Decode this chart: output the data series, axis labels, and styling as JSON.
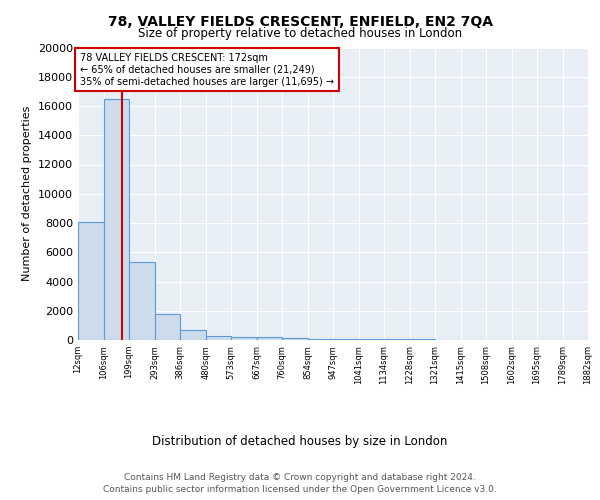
{
  "title": "78, VALLEY FIELDS CRESCENT, ENFIELD, EN2 7QA",
  "subtitle": "Size of property relative to detached houses in London",
  "xlabel": "Distribution of detached houses by size in London",
  "ylabel": "Number of detached properties",
  "bin_labels": [
    "12sqm",
    "106sqm",
    "199sqm",
    "293sqm",
    "386sqm",
    "480sqm",
    "573sqm",
    "667sqm",
    "760sqm",
    "854sqm",
    "947sqm",
    "1041sqm",
    "1134sqm",
    "1228sqm",
    "1321sqm",
    "1415sqm",
    "1508sqm",
    "1602sqm",
    "1695sqm",
    "1789sqm",
    "1882sqm"
  ],
  "bar_heights": [
    8100,
    16500,
    5300,
    1750,
    700,
    300,
    200,
    175,
    150,
    100,
    80,
    60,
    50,
    40,
    30,
    20,
    15,
    12,
    10,
    8
  ],
  "bar_color": "#ccdcec",
  "bar_edge_color": "#5b9bd5",
  "background_color": "#e8eef6",
  "annotation_line1": "78 VALLEY FIELDS CRESCENT: 172sqm",
  "annotation_line2": "← 65% of detached houses are smaller (21,249)",
  "annotation_line3": "35% of semi-detached houses are larger (11,695) →",
  "annotation_box_color": "#cc0000",
  "vline_color": "#cc0000",
  "ylim": [
    0,
    20000
  ],
  "yticks": [
    0,
    2000,
    4000,
    6000,
    8000,
    10000,
    12000,
    14000,
    16000,
    18000,
    20000
  ],
  "footer1": "Contains HM Land Registry data © Crown copyright and database right 2024.",
  "footer2": "Contains public sector information licensed under the Open Government Licence v3.0.",
  "bin_edges": [
    12,
    106,
    199,
    293,
    386,
    480,
    573,
    667,
    760,
    854,
    947,
    1041,
    1134,
    1228,
    1321,
    1415,
    1508,
    1602,
    1695,
    1789,
    1882
  ]
}
